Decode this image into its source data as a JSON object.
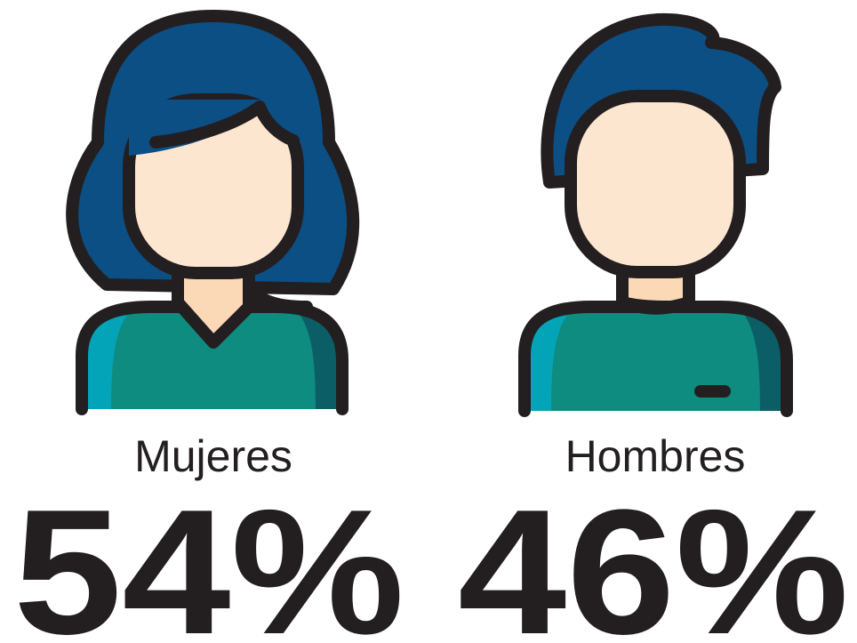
{
  "items": [
    {
      "label": "Mujeres",
      "value": "54%"
    },
    {
      "label": "Hombres",
      "value": "46%"
    }
  ]
}
